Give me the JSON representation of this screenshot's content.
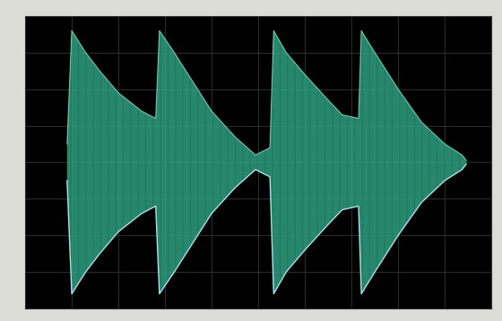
{
  "chart_data": {
    "type": "area",
    "x": [
      0.9,
      1.0,
      1.3,
      1.6,
      2.0,
      2.5,
      2.8,
      2.88,
      3.2,
      3.6,
      4.0,
      4.5,
      4.94,
      5.25,
      5.33,
      5.6,
      6.0,
      6.5,
      6.8,
      7.15,
      7.21,
      7.5,
      8.0,
      8.5,
      9.0,
      9.37,
      9.46
    ],
    "values": [
      0.5,
      3.6,
      3.0,
      2.5,
      1.9,
      1.4,
      1.2,
      3.6,
      3.0,
      2.2,
      1.4,
      0.7,
      0.2,
      0.4,
      3.6,
      3.0,
      2.4,
      1.7,
      1.3,
      1.2,
      3.6,
      3.0,
      2.0,
      1.1,
      0.5,
      0.2,
      0.05
    ],
    "color": "#2fa080",
    "xlim": [
      0,
      10
    ],
    "xticks": [
      0,
      1,
      2,
      3,
      4,
      5,
      6,
      7,
      8,
      9,
      10
    ],
    "ylim": [
      -4,
      4
    ],
    "yticks": [
      -4,
      -3,
      -2,
      -1,
      0,
      1,
      2,
      3,
      4
    ],
    "grid": true,
    "tick_labels": false
  }
}
